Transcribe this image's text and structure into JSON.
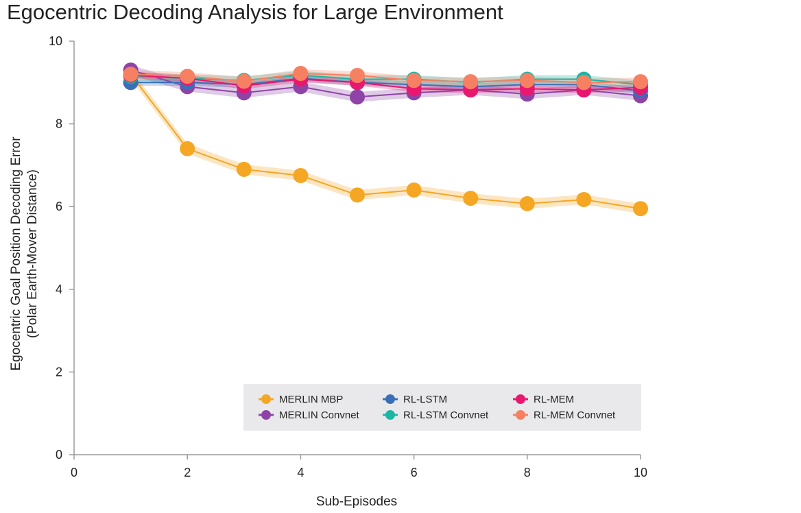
{
  "chart_data": {
    "type": "line",
    "title": "Egocentric Decoding Analysis for Large Environment",
    "xlabel": "Sub-Episodes",
    "ylabel": [
      "Egocentric Goal Position Decoding Error",
      "(Polar Earth-Mover Distance)"
    ],
    "xlim": [
      0,
      10
    ],
    "ylim": [
      0,
      10
    ],
    "xticks": [
      "0",
      "2",
      "4",
      "6",
      "8",
      "10"
    ],
    "yticks": [
      "0",
      "2",
      "4",
      "6",
      "8",
      "10"
    ],
    "grid": false,
    "legend_position": "bottom-right",
    "x": [
      1,
      2,
      3,
      4,
      5,
      6,
      7,
      8,
      9,
      10
    ],
    "series": [
      {
        "name": "MERLIN MBP",
        "color": "#f5a623",
        "band": 0.12,
        "values": [
          9.2,
          7.4,
          6.9,
          6.75,
          6.28,
          6.4,
          6.2,
          6.07,
          6.17,
          5.95
        ]
      },
      {
        "name": "MERLIN Convnet",
        "color": "#8e44a6",
        "band": 0.12,
        "values": [
          9.3,
          8.9,
          8.75,
          8.9,
          8.65,
          8.75,
          8.82,
          8.72,
          8.82,
          8.68
        ]
      },
      {
        "name": "RL-LSTM",
        "color": "#3a6fb8",
        "band": 0.08,
        "values": [
          9.0,
          9.0,
          8.95,
          9.1,
          9.0,
          8.95,
          8.9,
          8.95,
          8.95,
          8.8
        ]
      },
      {
        "name": "RL-LSTM Convnet",
        "color": "#1fb5a5",
        "band": 0.1,
        "values": [
          9.15,
          9.1,
          9.05,
          9.18,
          9.08,
          9.08,
          9.0,
          9.08,
          9.08,
          8.95
        ]
      },
      {
        "name": "RL-MEM",
        "color": "#e8186f",
        "band": 0.08,
        "values": [
          9.18,
          9.1,
          8.92,
          9.08,
          9.0,
          8.85,
          8.82,
          8.85,
          8.82,
          8.88
        ]
      },
      {
        "name": "RL-MEM Convnet",
        "color": "#f58162",
        "band": 0.1,
        "values": [
          9.2,
          9.15,
          9.03,
          9.22,
          9.17,
          9.05,
          9.02,
          9.05,
          9.0,
          9.02
        ]
      }
    ]
  }
}
